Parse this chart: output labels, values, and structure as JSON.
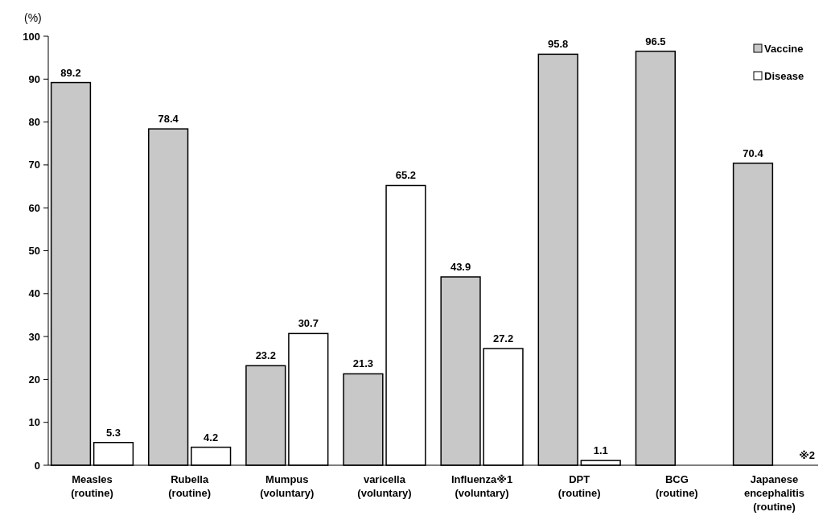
{
  "chart_data": {
    "type": "bar",
    "ylabel": "(%)",
    "categories": [
      "Measles (routine)",
      "Rubella (routine)",
      "Mumpus (voluntary)",
      "varicella (voluntary)",
      "Influenza※1 (voluntary)",
      "DPT (routine)",
      "BCG (routine)",
      "Japanese encephalitis (routine)"
    ],
    "series": [
      {
        "name": "Vaccine",
        "color": "#c8c8c8",
        "values": [
          89.2,
          78.4,
          23.2,
          21.3,
          43.9,
          95.8,
          96.5,
          70.4
        ]
      },
      {
        "name": "Disease",
        "color": "#ffffff",
        "values": [
          5.3,
          4.2,
          30.7,
          65.2,
          27.2,
          1.1,
          null,
          null
        ]
      }
    ],
    "ylim": [
      0,
      100
    ],
    "yticks": [
      0,
      10,
      20,
      30,
      40,
      50,
      60,
      70,
      80,
      90,
      100
    ],
    "data_labels": true,
    "legend": "top right",
    "grid": false,
    "annotations": [
      "※2"
    ]
  }
}
